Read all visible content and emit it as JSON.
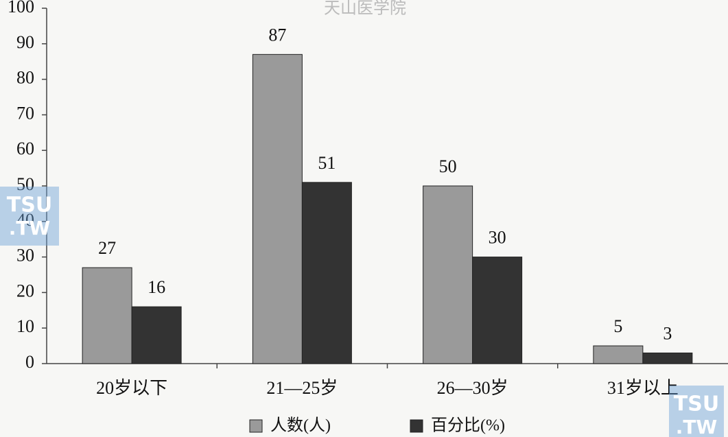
{
  "chart_data": {
    "type": "bar",
    "watermark": "天山医学院",
    "logo": [
      "TSU",
      ".TW"
    ],
    "categories": [
      "20岁以下",
      "21—25岁",
      "26—30岁",
      "31岁以上"
    ],
    "series": [
      {
        "name": "人数(人)",
        "color": "#9a9a9a",
        "values": [
          27,
          87,
          50,
          5
        ]
      },
      {
        "name": "百分比(%)",
        "color": "#333333",
        "values": [
          16,
          51,
          30,
          3
        ]
      }
    ],
    "ylim": [
      0,
      100
    ],
    "yticks": [
      0,
      10,
      20,
      30,
      40,
      50,
      60,
      70,
      80,
      90,
      100
    ],
    "grid": false,
    "legend": "bottom",
    "data_labels": true
  }
}
